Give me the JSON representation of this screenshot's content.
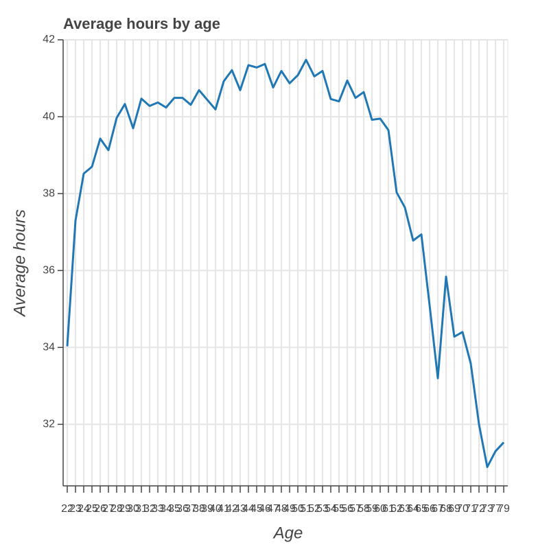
{
  "chart_data": {
    "type": "line",
    "title": "Average hours by age",
    "x_label": "Age",
    "y_label": "Average hours",
    "categories": [
      "22",
      "23",
      "24",
      "25",
      "26",
      "27",
      "28",
      "29",
      "30",
      "31",
      "32",
      "33",
      "34",
      "35",
      "36",
      "37",
      "38",
      "39",
      "40",
      "41",
      "42",
      "43",
      "44",
      "45",
      "46",
      "47",
      "48",
      "49",
      "50",
      "51",
      "52",
      "53",
      "54",
      "55",
      "56",
      "57",
      "58",
      "59",
      "60",
      "61",
      "62",
      "63",
      "64",
      "65",
      "66",
      "67",
      "68",
      "69",
      "70",
      "71",
      "72",
      "73",
      "77",
      "79"
    ],
    "series": [
      {
        "name": "Average hours",
        "color": "#1f77b4",
        "values": [
          34.03,
          37.3,
          38.52,
          38.7,
          39.43,
          39.13,
          39.97,
          40.33,
          39.7,
          40.47,
          40.28,
          40.37,
          40.24,
          40.49,
          40.49,
          40.31,
          40.69,
          40.44,
          40.19,
          40.92,
          41.21,
          40.69,
          41.34,
          41.28,
          41.37,
          40.76,
          41.19,
          40.87,
          41.08,
          41.48,
          41.05,
          41.19,
          40.46,
          40.4,
          40.94,
          40.49,
          40.64,
          39.92,
          39.95,
          39.65,
          38.03,
          37.64,
          36.78,
          36.94,
          35.1,
          33.2,
          35.84,
          34.28,
          34.4,
          33.58,
          32.0,
          30.89,
          31.3,
          31.53
        ]
      }
    ],
    "ylim": [
      30.4,
      42
    ],
    "yticks": [
      32,
      34,
      36,
      38,
      40,
      42
    ],
    "grid": true
  }
}
